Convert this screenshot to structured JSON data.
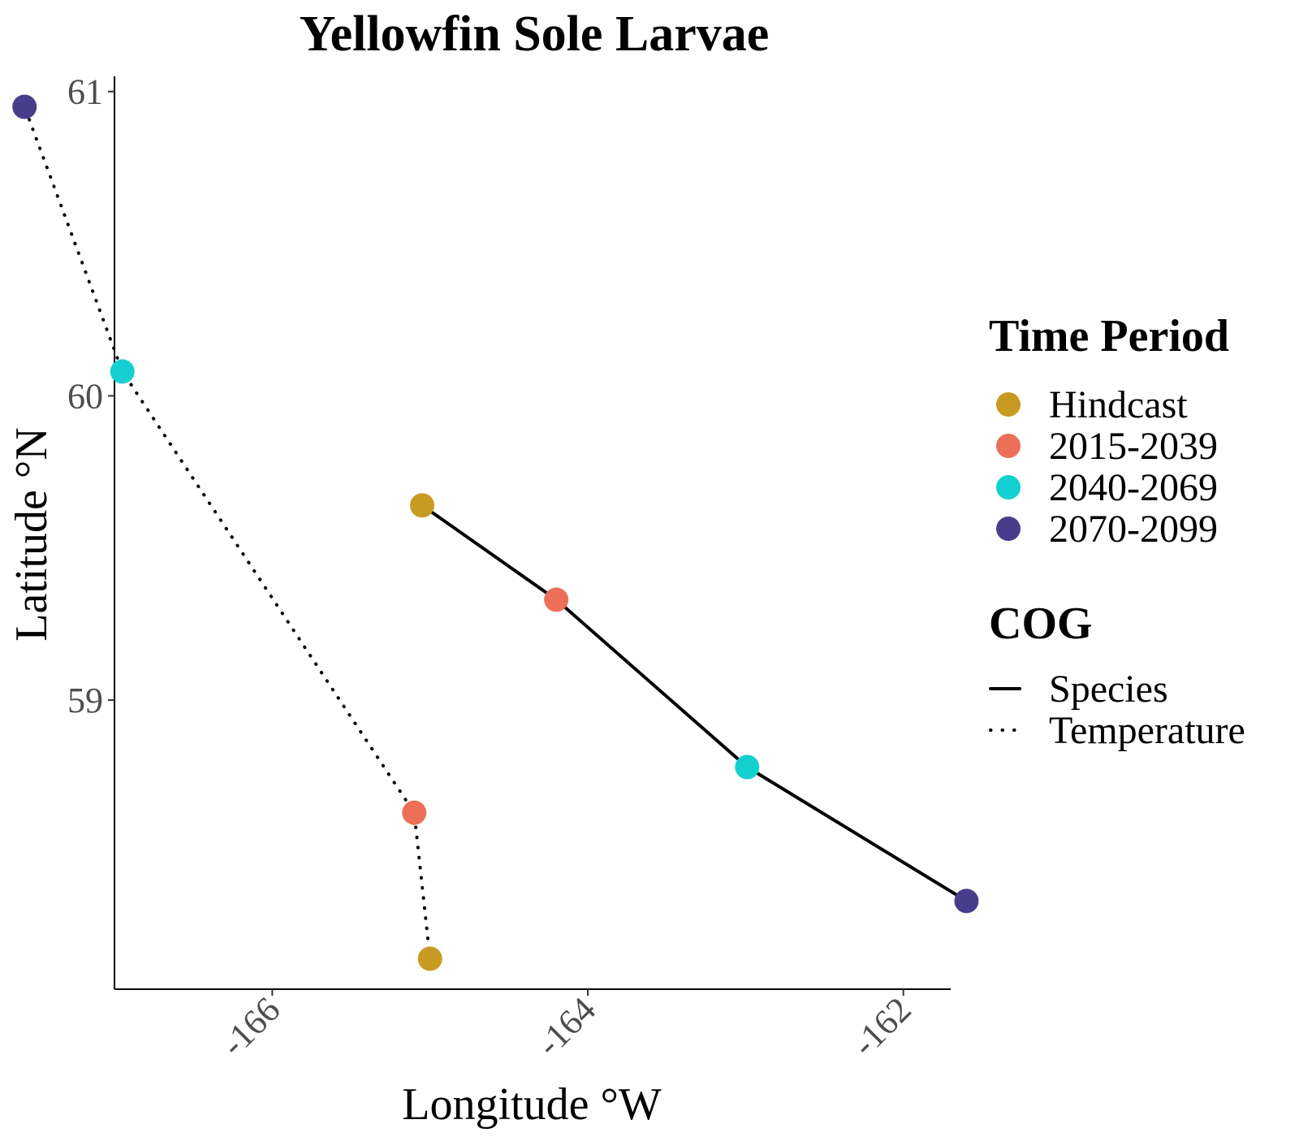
{
  "chart_data": {
    "type": "line",
    "title": "Yellowfin Sole Larvae",
    "xlabel": "Longitude °W",
    "ylabel": "Latitude °N",
    "xlim": [
      -167.0,
      -161.7
    ],
    "ylim": [
      58.05,
      61.05
    ],
    "x_ticks": [
      -166,
      -164,
      -162
    ],
    "x_tick_labels": [
      "-166",
      "-164",
      "-162"
    ],
    "y_ticks": [
      59,
      60,
      61
    ],
    "y_tick_labels": [
      "59",
      "60",
      "61"
    ],
    "grid": false,
    "legend_position": "right",
    "time_periods": [
      {
        "key": "hindcast",
        "label": "Hindcast",
        "color": "#C99A22"
      },
      {
        "key": "p2015",
        "label": "2015-2039",
        "color": "#EC6F57"
      },
      {
        "key": "p2040",
        "label": "2040-2069",
        "color": "#14CFCF"
      },
      {
        "key": "p2070",
        "label": "2070-2099",
        "color": "#483D8B"
      }
    ],
    "series": [
      {
        "name": "Species",
        "linetype": "solid",
        "points": [
          {
            "period": "hindcast",
            "x": -165.05,
            "y": 59.64
          },
          {
            "period": "p2015",
            "x": -164.2,
            "y": 59.33
          },
          {
            "period": "p2040",
            "x": -162.99,
            "y": 58.78
          },
          {
            "period": "p2070",
            "x": -161.6,
            "y": 58.34
          }
        ]
      },
      {
        "name": "Temperature",
        "linetype": "dotted",
        "points": [
          {
            "period": "hindcast",
            "x": -165.0,
            "y": 58.15
          },
          {
            "period": "p2015",
            "x": -165.1,
            "y": 58.63
          },
          {
            "period": "p2040",
            "x": -166.95,
            "y": 60.08
          },
          {
            "period": "p2070",
            "x": -167.57,
            "y": 60.95
          }
        ]
      }
    ]
  },
  "legend": {
    "time_period_title": "Time Period",
    "cog_title": "COG"
  }
}
